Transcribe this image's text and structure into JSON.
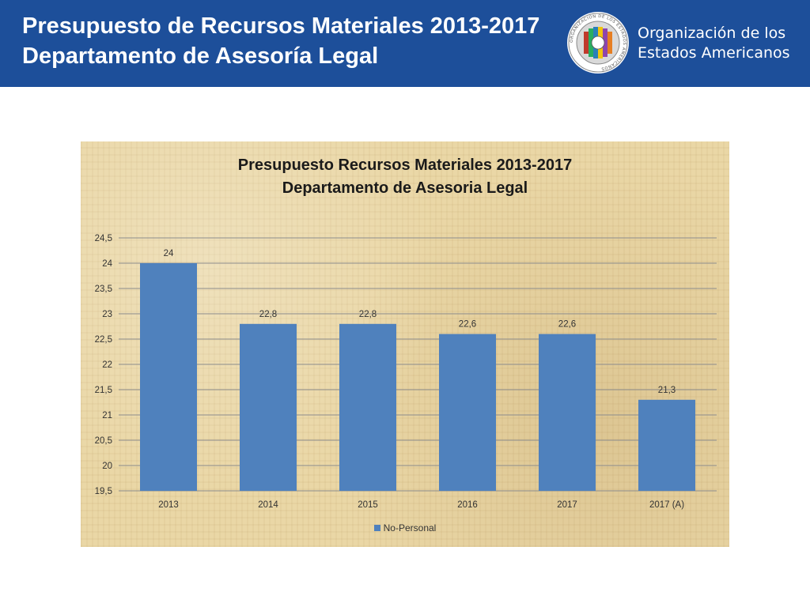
{
  "header": {
    "title_line1": "Presupuesto de Recursos Materiales 2013-2017",
    "title_line2": "Departamento de Asesoría Legal",
    "org_line1": "Organización de los",
    "org_line2": "Estados Americanos",
    "seal_text": "ORGANIZACION DE LOS ESTADOS AMERICANOS",
    "colors": {
      "header_bg": "#1d4f9a",
      "text": "#ffffff"
    }
  },
  "chart_data": {
    "type": "bar",
    "title_line1": "Presupuesto Recursos Materiales 2013-2017",
    "title_line2": "Departamento de Asesoria Legal",
    "categories": [
      "2013",
      "2014",
      "2015",
      "2016",
      "2017",
      "2017 (A)"
    ],
    "series": [
      {
        "name": "No-Personal",
        "values": [
          24,
          22.8,
          22.8,
          22.6,
          22.6,
          21.3
        ],
        "labels": [
          "24",
          "22,8",
          "22,8",
          "22,6",
          "22,6",
          "21,3"
        ],
        "color": "#4f81bd"
      }
    ],
    "ylim": [
      19.5,
      24.5
    ],
    "yticks": [
      19.5,
      20,
      20.5,
      21,
      21.5,
      22,
      22.5,
      23,
      23.5,
      24,
      24.5
    ],
    "ytick_labels": [
      "19,5",
      "20",
      "20,5",
      "21",
      "21,5",
      "22",
      "22,5",
      "23",
      "23,5",
      "24",
      "24,5"
    ],
    "grid": true,
    "legend_position": "bottom",
    "xlabel": "",
    "ylabel": ""
  }
}
